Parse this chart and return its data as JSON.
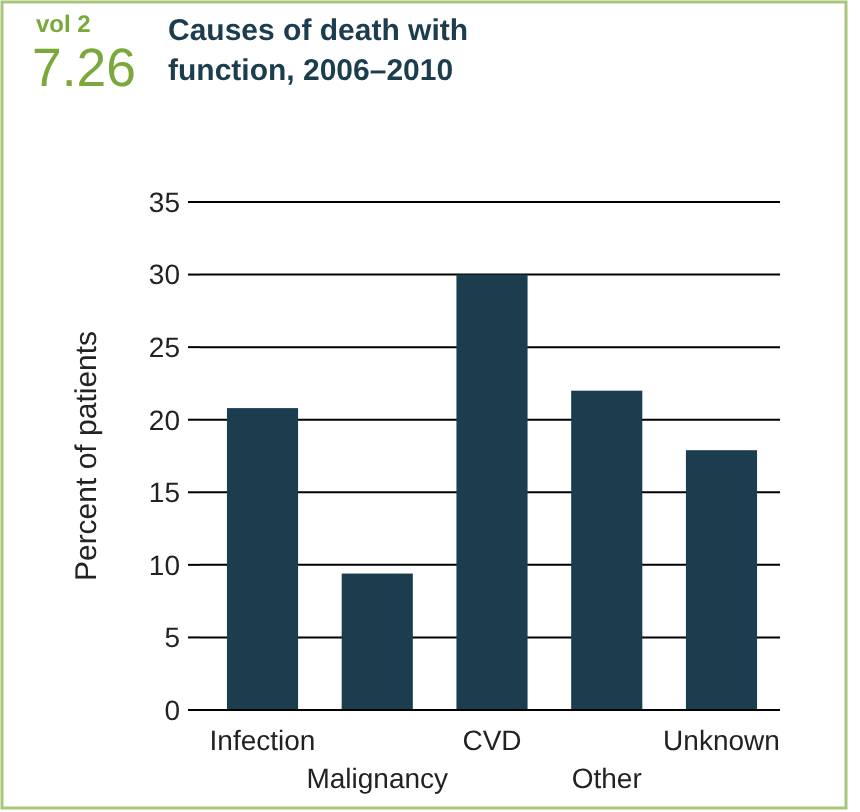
{
  "chart_data": {
    "type": "bar",
    "title": "Causes of death with function, 2006–2010",
    "ylabel": "Percent of patients",
    "annotations": [
      "vol 2",
      "7.26"
    ],
    "categories": [
      "Infection",
      "Malignancy",
      "CVD",
      "Other",
      "Unknown"
    ],
    "values": [
      20.8,
      9.4,
      30,
      22,
      17.9
    ],
    "color": "#1c3d4e",
    "ylim": [
      0,
      35
    ],
    "yticks": [
      0,
      5,
      10,
      15,
      20,
      25,
      30,
      35
    ],
    "grid": "y"
  }
}
